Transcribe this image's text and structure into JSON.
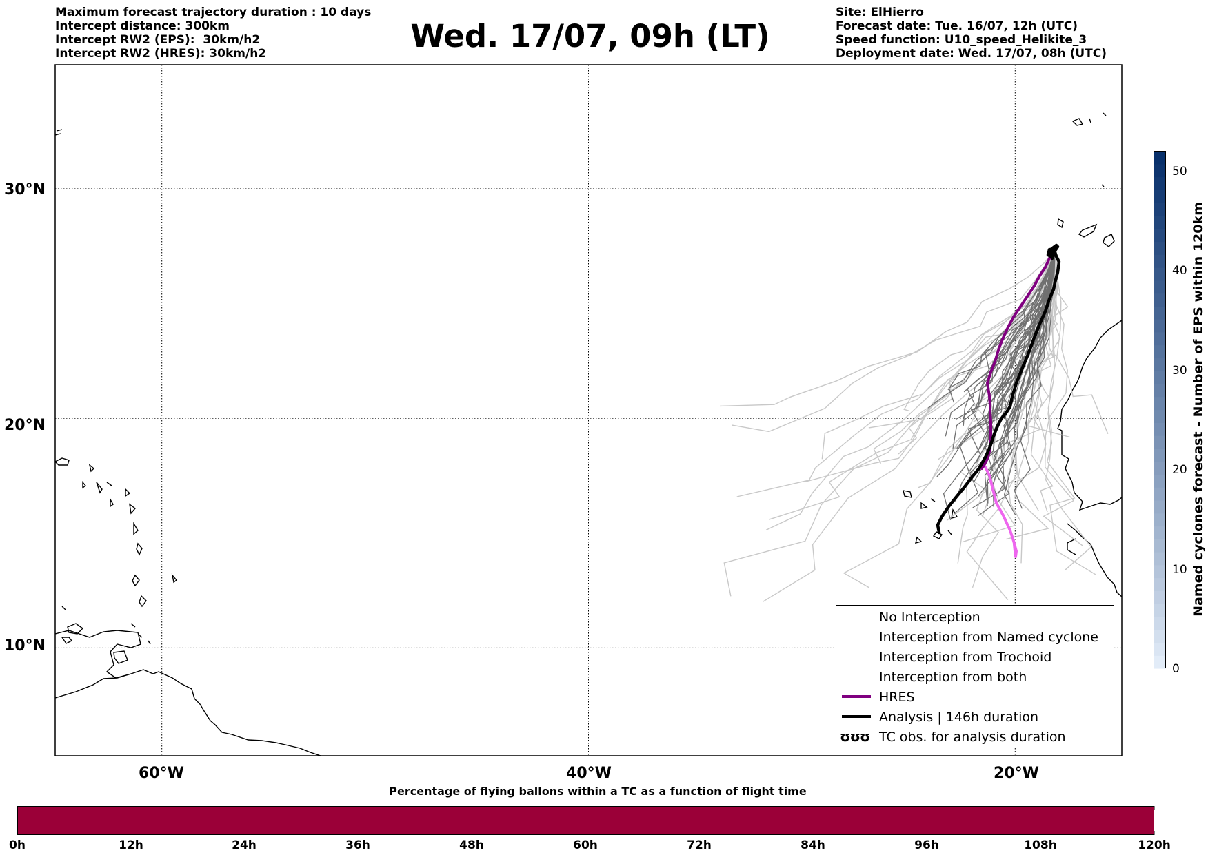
{
  "header": {
    "left": [
      "Maximum forecast trajectory duration : 10 days",
      "Intercept distance: 300km",
      "Intercept RW2 (EPS):  30km/h2",
      "Intercept RW2 (HRES): 30km/h2"
    ],
    "title": "Wed. 17/07, 09h (LT)",
    "right": [
      "Site: ElHierro",
      "Forecast date: Tue. 16/07, 12h (UTC)",
      "Speed function: U10_speed_Helikite_3",
      "Deployment date: Wed. 17/07, 08h (UTC)"
    ]
  },
  "map": {
    "lat_labels": [
      "30°N",
      "20°N",
      "10°N"
    ],
    "lon_labels": [
      "60°W",
      "40°W",
      "20°W"
    ],
    "lat_ticks": [
      30,
      20,
      10
    ],
    "lon_ticks": [
      -60,
      -40,
      -20
    ],
    "extent": {
      "lon_min": -65,
      "lon_max": -15,
      "lat_min": 5.3,
      "lat_max": 35.4
    },
    "gridlines": "dotted",
    "colors": {
      "no_interception": "#707070",
      "eps_light": "#c8c8c8",
      "named_cyclone": "#ff5000",
      "trochoid": "#808000",
      "both": "#008000",
      "hres": "#800080",
      "hres_light": "#ee66ee",
      "analysis": "#000000",
      "coast": "#000000"
    }
  },
  "legend": {
    "items": [
      {
        "label": "No Interception",
        "color": "#707070",
        "width": 1.2
      },
      {
        "label": "Interception from Named cyclone",
        "color": "#ff5000",
        "width": 1.2
      },
      {
        "label": "Interception from Trochoid",
        "color": "#808000",
        "width": 1.2
      },
      {
        "label": "Interception from both",
        "color": "#008000",
        "width": 1.2
      },
      {
        "label": "HRES",
        "color": "#800080",
        "width": 4
      },
      {
        "label": "Analysis | 146h duration",
        "color": "#000000",
        "width": 4
      },
      {
        "label": "TC obs. for analysis duration",
        "symbol": "ʊʊʊ"
      }
    ]
  },
  "colorbar_right": {
    "label": "Named cyclones forecast - Number of EPS within 120km",
    "ticks": [
      "0",
      "10",
      "20",
      "30",
      "40",
      "50"
    ],
    "min": 0,
    "max": 52,
    "color_low": "#e2ecf8",
    "color_high": "#08306b"
  },
  "colorbar_bottom": {
    "title": "Percentage of flying ballons within a TC as a function of flight time",
    "ticks": [
      "0h",
      "12h",
      "24h",
      "36h",
      "48h",
      "60h",
      "72h",
      "84h",
      "96h",
      "108h",
      "120h"
    ],
    "color": "#9b0038"
  }
}
